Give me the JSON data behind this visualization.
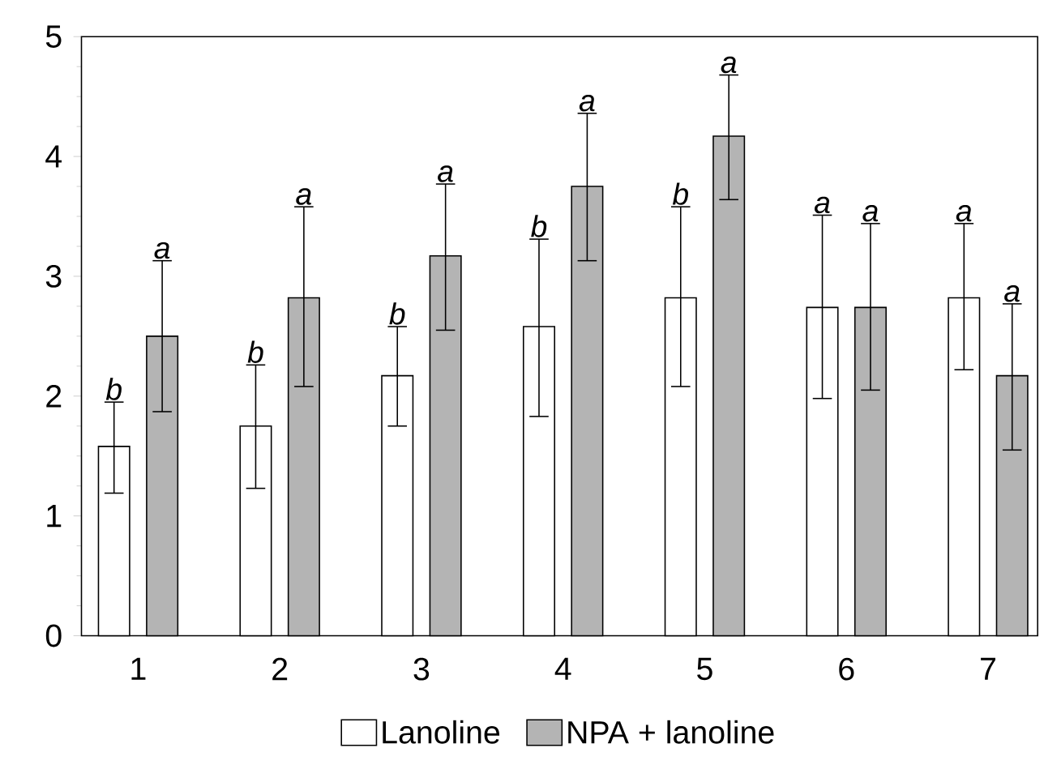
{
  "chart_data": {
    "type": "bar",
    "categories": [
      "1",
      "2",
      "3",
      "4",
      "5",
      "6",
      "7"
    ],
    "ylim": [
      0,
      5
    ],
    "yticks": [
      0,
      1,
      2,
      3,
      4,
      5
    ],
    "legend": "bottom",
    "series": [
      {
        "name": "Lanoline",
        "color": "#ffffff",
        "values": [
          1.58,
          1.75,
          2.17,
          2.58,
          2.82,
          2.74,
          2.82
        ],
        "errors": [
          [
            1.19,
            1.95
          ],
          [
            1.23,
            2.26
          ],
          [
            1.75,
            2.58
          ],
          [
            1.83,
            3.31
          ],
          [
            2.08,
            3.58
          ],
          [
            1.98,
            3.51
          ],
          [
            2.22,
            3.44
          ]
        ]
      },
      {
        "name": "NPA + lanoline",
        "color": "#b4b4b4",
        "values": [
          2.5,
          2.82,
          3.17,
          3.75,
          4.17,
          2.74,
          2.17
        ],
        "errors": [
          [
            1.87,
            3.13
          ],
          [
            2.08,
            3.58
          ],
          [
            2.55,
            3.77
          ],
          [
            3.13,
            4.36
          ],
          [
            3.64,
            4.68
          ],
          [
            2.05,
            3.44
          ],
          [
            1.55,
            2.77
          ]
        ]
      }
    ],
    "annotations": [
      "b",
      "b",
      "b",
      "b",
      "b",
      "a",
      "a",
      "a",
      "a",
      "a",
      "a",
      "a",
      "a",
      "a"
    ]
  }
}
